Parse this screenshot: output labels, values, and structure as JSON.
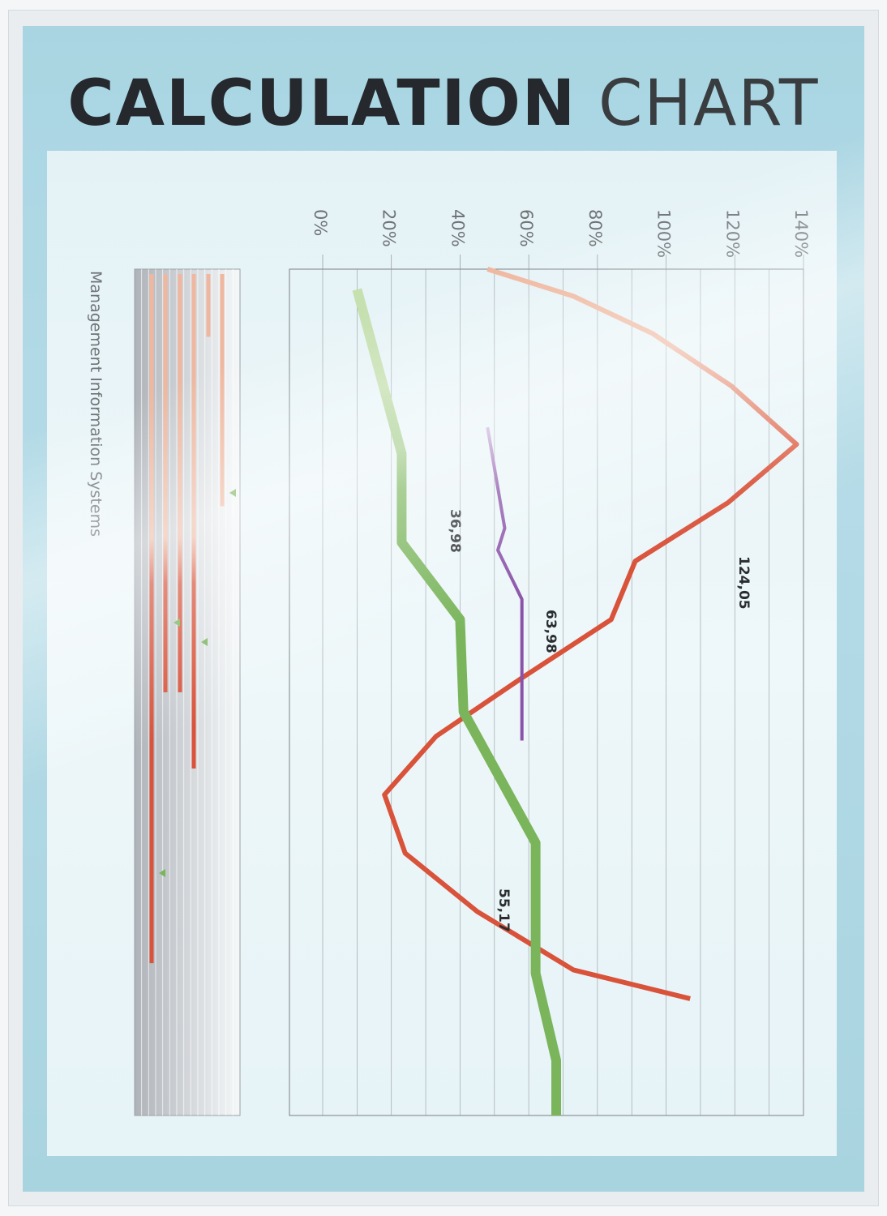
{
  "title": {
    "bold": "CALCULATION",
    "light": "CHART"
  },
  "subtitle": "Management Information Systems",
  "colors": {
    "red": "#d9523a",
    "red_light": "#efb79f",
    "green": "#7ab55c",
    "green_light": "#c6e0b0",
    "purple": "#8a52a8",
    "grid": "#8c9499",
    "text": "#6f7478"
  },
  "chart_data": {
    "type": "line",
    "orientation": "rotated-90-clockwise",
    "value_axis": {
      "ticks": [
        "0%",
        "20%",
        "40%",
        "60%",
        "80%",
        "100%",
        "120%",
        "140%"
      ],
      "range": [
        0,
        140
      ]
    },
    "grid": true,
    "series": [
      {
        "key": "red",
        "values": [
          [
            0,
            48
          ],
          [
            3.2,
            73
          ],
          [
            7.6,
            96
          ],
          [
            13.8,
            119
          ],
          [
            20.7,
            138
          ],
          [
            27.6,
            118
          ],
          [
            34.5,
            91
          ],
          [
            41.4,
            84
          ],
          [
            48.3,
            58
          ],
          [
            55.2,
            33
          ],
          [
            62.1,
            18
          ],
          [
            69.0,
            24
          ],
          [
            75.9,
            45
          ],
          [
            82.8,
            73
          ],
          [
            86.2,
            107
          ]
        ]
      },
      {
        "key": "green",
        "values": [
          [
            2.4,
            10
          ],
          [
            21.8,
            23
          ],
          [
            32.3,
            23
          ],
          [
            41.4,
            40
          ],
          [
            52.3,
            41
          ],
          [
            67.8,
            62
          ],
          [
            83.2,
            62
          ],
          [
            93.5,
            68
          ],
          [
            100,
            68
          ]
        ]
      },
      {
        "key": "purple",
        "values": [
          [
            18.7,
            48
          ],
          [
            30.6,
            53
          ],
          [
            33.2,
            51
          ],
          [
            39.0,
            58
          ],
          [
            55.7,
            58
          ]
        ]
      }
    ],
    "labels": [
      {
        "text": "124,05",
        "series": "red"
      },
      {
        "text": "36,98",
        "series": "green"
      },
      {
        "text": "63,98",
        "series": "purple"
      },
      {
        "text": "55,17",
        "series": "green"
      }
    ],
    "mini_bars": {
      "type": "bar",
      "values": [
        82,
        50,
        50,
        59,
        8,
        28
      ]
    }
  }
}
